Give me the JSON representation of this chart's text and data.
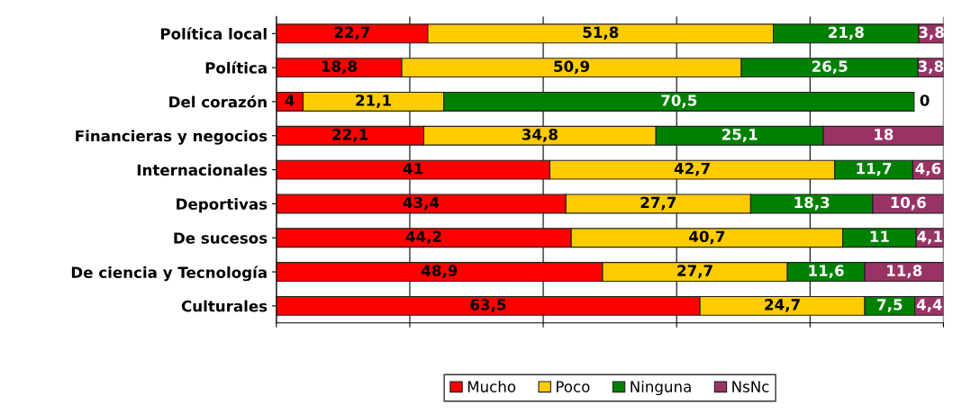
{
  "chart_data": {
    "type": "bar",
    "orientation": "horizontal",
    "stacked": true,
    "categories": [
      "Política local",
      "Política",
      "Del corazón",
      "Financieras y negocios",
      "Internacionales",
      "Deportivas",
      "De sucesos",
      "De ciencia y Tecnología",
      "Culturales"
    ],
    "series": [
      {
        "name": "Mucho",
        "color": "#ff0000",
        "values": [
          22.7,
          18.8,
          4,
          22.1,
          41,
          43.4,
          44.2,
          48.9,
          63.5
        ],
        "value_labels": [
          "22,7",
          "18,8",
          "4",
          "22,1",
          "41",
          "43,4",
          "44,2",
          "48,9",
          "63,5"
        ]
      },
      {
        "name": "Poco",
        "color": "#ffcc00",
        "values": [
          51.8,
          50.9,
          21.1,
          34.8,
          42.7,
          27.7,
          40.7,
          27.7,
          24.7
        ],
        "value_labels": [
          "51,8",
          "50,9",
          "21,1",
          "34,8",
          "42,7",
          "27,7",
          "40,7",
          "27,7",
          "24,7"
        ]
      },
      {
        "name": "Ninguna",
        "color": "#008000",
        "values": [
          21.8,
          26.5,
          70.5,
          25.1,
          11.7,
          18.3,
          11,
          11.6,
          7.5
        ],
        "value_labels": [
          "21,8",
          "26,5",
          "70,5",
          "25,1",
          "11,7",
          "18,3",
          "11",
          "11,6",
          "7,5"
        ]
      },
      {
        "name": "NsNc",
        "color": "#993366",
        "values": [
          3.8,
          3.8,
          0,
          18,
          4.6,
          10.6,
          4.1,
          11.8,
          4.4
        ],
        "value_labels": [
          "3,8",
          "3,8",
          "0",
          "18",
          "4,6",
          "10,6",
          "4,1",
          "11,8",
          "4,4"
        ]
      }
    ],
    "xlim": [
      0,
      100
    ],
    "xticks": [
      {
        "value": 0,
        "label": null
      },
      {
        "value": 20,
        "label": null
      },
      {
        "value": 40,
        "label": null
      },
      {
        "value": 60,
        "label": null
      },
      {
        "value": 80,
        "label": null
      },
      {
        "value": 100,
        "label": null
      }
    ],
    "grid": "x",
    "legend": "bottom",
    "tick_labels": "y"
  }
}
